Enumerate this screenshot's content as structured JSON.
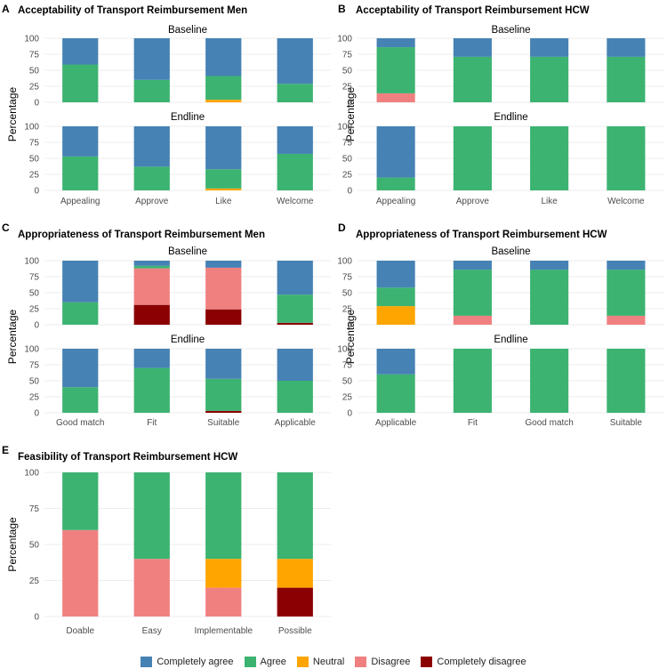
{
  "colors": {
    "completely_agree": "#4682B4",
    "agree": "#3CB371",
    "neutral": "#FFA500",
    "disagree": "#F08080",
    "completely_disagree": "#8B0000",
    "grid": "#e6e6e6"
  },
  "y_axis_label": "Percentage",
  "legend": [
    {
      "key": "completely_agree",
      "label": "Completely agree"
    },
    {
      "key": "agree",
      "label": "Agree"
    },
    {
      "key": "neutral",
      "label": "Neutral"
    },
    {
      "key": "disagree",
      "label": "Disagree"
    },
    {
      "key": "completely_disagree",
      "label": "Completely disagree"
    }
  ],
  "chart_data": [
    {
      "panel": "A",
      "type": "bar",
      "stacked": true,
      "title": "Acceptability of Transport Reimbursement Men",
      "ylabel": "Percentage",
      "ylim": [
        0,
        100
      ],
      "yticks": [
        0,
        25,
        50,
        75,
        100
      ],
      "categories": [
        "Appealing",
        "Approve",
        "Like",
        "Welcome"
      ],
      "facets": [
        {
          "label": "Baseline",
          "series": [
            {
              "key": "completely_disagree",
              "name": "Completely disagree",
              "values": [
                0,
                0,
                0,
                0
              ]
            },
            {
              "key": "disagree",
              "name": "Disagree",
              "values": [
                0,
                0,
                0,
                0
              ]
            },
            {
              "key": "neutral",
              "name": "Neutral",
              "values": [
                0,
                0,
                4,
                0
              ]
            },
            {
              "key": "agree",
              "name": "Agree",
              "values": [
                59,
                35,
                37,
                29
              ]
            },
            {
              "key": "completely_agree",
              "name": "Completely agree",
              "values": [
                41,
                65,
                59,
                71
              ]
            }
          ]
        },
        {
          "label": "Endline",
          "series": [
            {
              "key": "completely_disagree",
              "name": "Completely disagree",
              "values": [
                0,
                0,
                0,
                0
              ]
            },
            {
              "key": "disagree",
              "name": "Disagree",
              "values": [
                0,
                0,
                0,
                0
              ]
            },
            {
              "key": "neutral",
              "name": "Neutral",
              "values": [
                0,
                0,
                3,
                0
              ]
            },
            {
              "key": "agree",
              "name": "Agree",
              "values": [
                53,
                37,
                30,
                57
              ]
            },
            {
              "key": "completely_agree",
              "name": "Completely agree",
              "values": [
                47,
                63,
                67,
                43
              ]
            }
          ]
        }
      ]
    },
    {
      "panel": "B",
      "type": "bar",
      "stacked": true,
      "title": "Acceptability of Transport Reimbursement HCW",
      "ylabel": "Percentage",
      "ylim": [
        0,
        100
      ],
      "yticks": [
        0,
        25,
        50,
        75,
        100
      ],
      "categories": [
        "Appealing",
        "Approve",
        "Like",
        "Welcome"
      ],
      "facets": [
        {
          "label": "Baseline",
          "series": [
            {
              "key": "completely_disagree",
              "name": "Completely disagree",
              "values": [
                0,
                0,
                0,
                0
              ]
            },
            {
              "key": "disagree",
              "name": "Disagree",
              "values": [
                14,
                0,
                0,
                0
              ]
            },
            {
              "key": "neutral",
              "name": "Neutral",
              "values": [
                0,
                0,
                0,
                0
              ]
            },
            {
              "key": "agree",
              "name": "Agree",
              "values": [
                72,
                71,
                71,
                71
              ]
            },
            {
              "key": "completely_agree",
              "name": "Completely agree",
              "values": [
                14,
                29,
                29,
                29
              ]
            }
          ]
        },
        {
          "label": "Endline",
          "series": [
            {
              "key": "completely_disagree",
              "name": "Completely disagree",
              "values": [
                0,
                0,
                0,
                0
              ]
            },
            {
              "key": "disagree",
              "name": "Disagree",
              "values": [
                0,
                0,
                0,
                0
              ]
            },
            {
              "key": "neutral",
              "name": "Neutral",
              "values": [
                0,
                0,
                0,
                0
              ]
            },
            {
              "key": "agree",
              "name": "Agree",
              "values": [
                20,
                100,
                100,
                100
              ]
            },
            {
              "key": "completely_agree",
              "name": "Completely agree",
              "values": [
                80,
                0,
                0,
                0
              ]
            }
          ]
        }
      ]
    },
    {
      "panel": "C",
      "type": "bar",
      "stacked": true,
      "title": "Appropriateness of Transport Reimbursement Men",
      "ylabel": "Percentage",
      "ylim": [
        0,
        100
      ],
      "yticks": [
        0,
        25,
        50,
        75,
        100
      ],
      "categories": [
        "Good match",
        "Fit",
        "Suitable",
        "Applicable"
      ],
      "facets": [
        {
          "label": "Baseline",
          "series": [
            {
              "key": "completely_disagree",
              "name": "Completely disagree",
              "values": [
                0,
                31,
                24,
                3
              ]
            },
            {
              "key": "disagree",
              "name": "Disagree",
              "values": [
                0,
                57,
                65,
                0
              ]
            },
            {
              "key": "neutral",
              "name": "Neutral",
              "values": [
                0,
                0,
                0,
                0
              ]
            },
            {
              "key": "agree",
              "name": "Agree",
              "values": [
                35,
                4,
                0,
                44
              ]
            },
            {
              "key": "completely_agree",
              "name": "Completely agree",
              "values": [
                65,
                8,
                11,
                53
              ]
            }
          ]
        },
        {
          "label": "Endline",
          "series": [
            {
              "key": "completely_disagree",
              "name": "Completely disagree",
              "values": [
                0,
                0,
                3,
                0
              ]
            },
            {
              "key": "disagree",
              "name": "Disagree",
              "values": [
                0,
                0,
                0,
                0
              ]
            },
            {
              "key": "neutral",
              "name": "Neutral",
              "values": [
                0,
                0,
                0,
                0
              ]
            },
            {
              "key": "agree",
              "name": "Agree",
              "values": [
                40,
                70,
                50,
                50
              ]
            },
            {
              "key": "completely_agree",
              "name": "Completely agree",
              "values": [
                60,
                30,
                47,
                50
              ]
            }
          ]
        }
      ]
    },
    {
      "panel": "D",
      "type": "bar",
      "stacked": true,
      "title": "Appropriateness of Transport Reimbursement HCW",
      "ylabel": "Percentage",
      "ylim": [
        0,
        100
      ],
      "yticks": [
        0,
        25,
        50,
        75,
        100
      ],
      "categories": [
        "Applicable",
        "Fit",
        "Good match",
        "Suitable"
      ],
      "facets": [
        {
          "label": "Baseline",
          "series": [
            {
              "key": "completely_disagree",
              "name": "Completely disagree",
              "values": [
                0,
                0,
                0,
                0
              ]
            },
            {
              "key": "disagree",
              "name": "Disagree",
              "values": [
                0,
                14,
                0,
                14
              ]
            },
            {
              "key": "neutral",
              "name": "Neutral",
              "values": [
                29,
                0,
                0,
                0
              ]
            },
            {
              "key": "agree",
              "name": "Agree",
              "values": [
                29,
                72,
                86,
                72
              ]
            },
            {
              "key": "completely_agree",
              "name": "Completely agree",
              "values": [
                42,
                14,
                14,
                14
              ]
            }
          ]
        },
        {
          "label": "Endline",
          "series": [
            {
              "key": "completely_disagree",
              "name": "Completely disagree",
              "values": [
                0,
                0,
                0,
                0
              ]
            },
            {
              "key": "disagree",
              "name": "Disagree",
              "values": [
                0,
                0,
                0,
                0
              ]
            },
            {
              "key": "neutral",
              "name": "Neutral",
              "values": [
                0,
                0,
                0,
                0
              ]
            },
            {
              "key": "agree",
              "name": "Agree",
              "values": [
                60,
                100,
                100,
                100
              ]
            },
            {
              "key": "completely_agree",
              "name": "Completely agree",
              "values": [
                40,
                0,
                0,
                0
              ]
            }
          ]
        }
      ]
    },
    {
      "panel": "E",
      "type": "bar",
      "stacked": true,
      "title": "Feasibility of Transport Reimbursement HCW",
      "ylabel": "Percentage",
      "ylim": [
        0,
        100
      ],
      "yticks": [
        0,
        25,
        50,
        75,
        100
      ],
      "categories": [
        "Doable",
        "Easy",
        "Implementable",
        "Possible"
      ],
      "facets": [
        {
          "label": "",
          "series": [
            {
              "key": "completely_disagree",
              "name": "Completely disagree",
              "values": [
                0,
                0,
                0,
                20
              ]
            },
            {
              "key": "disagree",
              "name": "Disagree",
              "values": [
                60,
                40,
                20,
                0
              ]
            },
            {
              "key": "neutral",
              "name": "Neutral",
              "values": [
                0,
                0,
                20,
                20
              ]
            },
            {
              "key": "agree",
              "name": "Agree",
              "values": [
                40,
                60,
                60,
                60
              ]
            },
            {
              "key": "completely_agree",
              "name": "Completely agree",
              "values": [
                0,
                0,
                0,
                0
              ]
            }
          ]
        }
      ]
    }
  ]
}
